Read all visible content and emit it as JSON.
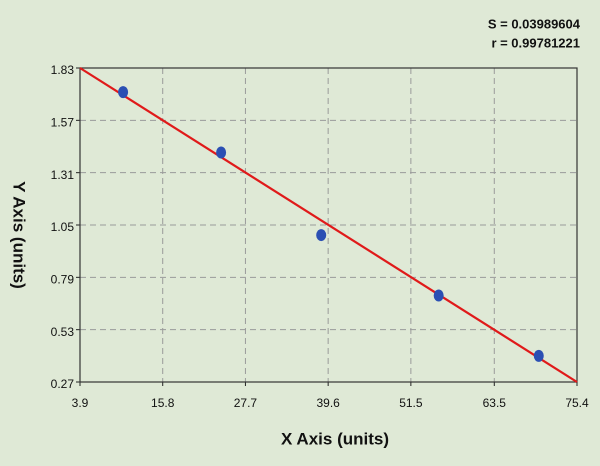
{
  "chart_data": {
    "type": "scatter",
    "x_label": "X Axis (units)",
    "y_label": "Y Axis (units)",
    "annotations": [
      "S = 0.03989604",
      "r = 0.99781221"
    ],
    "series": [
      {
        "color": "#2b4fb3",
        "x": [
          10.1,
          24.2,
          38.6,
          55.5,
          69.9
        ],
        "values": [
          1.71,
          1.41,
          1.0,
          0.7,
          0.4
        ]
      }
    ],
    "fit": {
      "color": "#e01a1a",
      "x": [
        3.9,
        75.4
      ],
      "values": [
        1.83,
        0.27
      ]
    },
    "xlim": [
      3.9,
      75.4
    ],
    "xticks": [
      3.9,
      15.8,
      27.7,
      39.6,
      51.5,
      63.5,
      75.4
    ],
    "ylim": [
      0.27,
      1.83
    ],
    "yticks": [
      0.27,
      0.53,
      0.79,
      1.05,
      1.31,
      1.57,
      1.83
    ],
    "grid": true
  }
}
